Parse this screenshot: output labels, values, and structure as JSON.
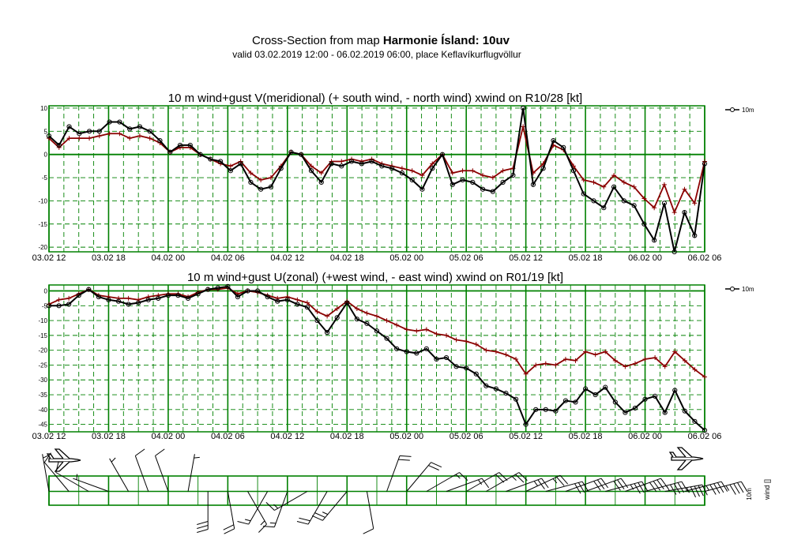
{
  "header": {
    "title_prefix": "Cross-Section from map ",
    "title_bold": "Harmonie Ísland: 10uv",
    "subtitle": "valid 03.02.2019 12:00 - 06.02.2019 06:00, place Keflavíkurflugvöllur"
  },
  "colors": {
    "grid": "#008000",
    "wind_line": "#000000",
    "gust_line": "#8b0000"
  },
  "icons": [
    "airplane-left-icon",
    "airplane-right-icon"
  ],
  "chart_data": [
    {
      "type": "line",
      "title": "10 m wind+gust V(meridional) (+ south wind, - north wind) xwind on R10/28 [kt]",
      "x_tick_labels": [
        "03.02 12",
        "03.02 18",
        "04.02 00",
        "04.02 06",
        "04.02 12",
        "04.02 18",
        "05.02 00",
        "05.02 06",
        "05.02 12",
        "05.02 18",
        "06.02 00",
        "06.02 06"
      ],
      "x_range_hours": [
        0,
        66
      ],
      "y_ticks": [
        10,
        5,
        0,
        -5,
        -10,
        -15,
        -20
      ],
      "ylim": [
        -21,
        10.5
      ],
      "legend": "10m",
      "legend_position": "top-right",
      "grid": true,
      "series": [
        {
          "name": "10m",
          "role": "wind",
          "values": [
            4,
            2,
            6,
            4.5,
            5,
            5,
            7,
            7,
            5.5,
            6,
            5,
            3,
            0.5,
            2,
            2,
            0,
            -1,
            -1.5,
            -3.5,
            -2,
            -6,
            -7.5,
            -7,
            -3,
            0.5,
            0,
            -3.5,
            -6,
            -2,
            -2.5,
            -1.5,
            -2,
            -1.5,
            -2.5,
            -3,
            -4,
            -5.5,
            -7.5,
            -3,
            0,
            -6.5,
            -5.5,
            -6,
            -7.5,
            -8,
            -6,
            -4.5,
            10,
            -6.5,
            -3,
            3,
            1.5,
            -3.5,
            -8.5,
            -10,
            -11.5,
            -7,
            -10,
            -11,
            -15,
            -18.5,
            -10.5,
            -21,
            -12.5,
            -17.5,
            -2
          ]
        },
        {
          "role": "gust",
          "values": [
            3.5,
            1.5,
            3.5,
            3.5,
            3.5,
            4,
            4.5,
            4.5,
            3.5,
            4,
            3.5,
            2.5,
            0.5,
            1.5,
            1.5,
            0,
            -1,
            -2,
            -2.5,
            -1.5,
            -4,
            -5.5,
            -5,
            -2.5,
            0.5,
            0,
            -2.5,
            -4,
            -1.5,
            -1.5,
            -1,
            -1.5,
            -1,
            -2,
            -2.5,
            -3,
            -3.5,
            -4.5,
            -2,
            0,
            -4,
            -3.5,
            -3.5,
            -4.5,
            -5,
            -3.5,
            -3,
            6,
            -4,
            -2,
            2,
            1,
            -2.5,
            -5.5,
            -6,
            -7,
            -4.5,
            -6,
            -7,
            -9.5,
            -11.5,
            -6.5,
            -12.5,
            -7.5,
            -10.5,
            -1.5
          ]
        }
      ]
    },
    {
      "type": "line",
      "title": "10 m wind+gust U(zonal) (+west wind, - east wind) xwind on R01/19 [kt]",
      "x_tick_labels": [
        "03.02 12",
        "03.02 18",
        "04.02 00",
        "04.02 06",
        "04.02 12",
        "04.02 18",
        "05.02 00",
        "05.02 06",
        "05.02 12",
        "05.02 18",
        "06.02 00",
        "06.02 06"
      ],
      "x_range_hours": [
        0,
        66
      ],
      "y_ticks": [
        0,
        -5,
        -10,
        -15,
        -20,
        -25,
        -30,
        -35,
        -40,
        -45
      ],
      "ylim": [
        -47.5,
        2
      ],
      "legend": "10m",
      "legend_position": "top-right",
      "grid": true,
      "series": [
        {
          "name": "10m",
          "role": "wind",
          "values": [
            -5,
            -5,
            -4.5,
            -1.5,
            0.5,
            -2,
            -3,
            -3.5,
            -4.5,
            -4,
            -3,
            -2.5,
            -1.5,
            -1.5,
            -2.5,
            -1,
            0.5,
            1,
            1.5,
            -2,
            0,
            0,
            -2,
            -3.5,
            -3,
            -4.5,
            -5.5,
            -10,
            -14,
            -9,
            -4,
            -9.5,
            -11,
            -13.5,
            -16,
            -19.5,
            -20.5,
            -21,
            -19.5,
            -23,
            -22.5,
            -25.5,
            -26,
            -28,
            -32,
            -33,
            -34.5,
            -36.5,
            -45,
            -40,
            -40,
            -40.5,
            -37,
            -37.5,
            -33,
            -35,
            -32.5,
            -37.5,
            -41,
            -39.5,
            -36.5,
            -35.5,
            -41,
            -33.5,
            -40.5,
            -44,
            -47
          ]
        },
        {
          "role": "gust",
          "values": [
            -4.5,
            -3,
            -2.5,
            -1,
            0.5,
            -1.5,
            -2,
            -2.5,
            -2.5,
            -3,
            -2,
            -1.5,
            -1,
            -1,
            -2,
            -0.5,
            0.5,
            0.5,
            1,
            -1,
            0,
            -0.5,
            -1.5,
            -2.5,
            -2,
            -3,
            -4,
            -7,
            -8.5,
            -6,
            -3.5,
            -6,
            -7.5,
            -8.5,
            -10,
            -11.5,
            -13,
            -13.5,
            -13,
            -14.5,
            -15,
            -16.5,
            -17,
            -18,
            -20,
            -20.5,
            -21.5,
            -23,
            -28,
            -25,
            -24.5,
            -25,
            -23,
            -23.5,
            -20.5,
            -21.5,
            -20.5,
            -23.5,
            -25.5,
            -24.5,
            -23,
            -22.5,
            -25.5,
            -20.5,
            -23.5,
            -26.5,
            -29
          ]
        }
      ]
    }
  ],
  "barb_panel": {
    "legend_top": "10m",
    "legend_side": "wind []",
    "barbs": [
      {
        "dir": 350,
        "kt": 5
      },
      {
        "dir": 320,
        "kt": 10
      },
      {
        "dir": 300,
        "kt": 10
      },
      {
        "dir": 290,
        "kt": 5
      },
      {
        "dir": 330,
        "kt": 5
      },
      {
        "dir": 340,
        "kt": 10
      },
      {
        "dir": 340,
        "kt": 10
      },
      {
        "dir": 10,
        "kt": 5
      },
      {
        "dir": 180,
        "kt": 30
      },
      {
        "dir": 170,
        "kt": 20
      },
      {
        "dir": 150,
        "kt": 15
      },
      {
        "dir": 210,
        "kt": 15
      },
      {
        "dir": 200,
        "kt": 15
      },
      {
        "dir": 240,
        "kt": 15
      },
      {
        "dir": 210,
        "kt": 20
      },
      {
        "dir": 220,
        "kt": 25
      },
      {
        "dir": 170,
        "kt": 10
      },
      {
        "dir": 20,
        "kt": 20
      },
      {
        "dir": 40,
        "kt": 20
      },
      {
        "dir": 60,
        "kt": 15
      },
      {
        "dir": 70,
        "kt": 15
      },
      {
        "dir": 60,
        "kt": 20
      },
      {
        "dir": 60,
        "kt": 25
      },
      {
        "dir": 70,
        "kt": 25
      },
      {
        "dir": 65,
        "kt": 25
      },
      {
        "dir": 75,
        "kt": 30
      },
      {
        "dir": 70,
        "kt": 30
      },
      {
        "dir": 70,
        "kt": 30
      },
      {
        "dir": 75,
        "kt": 35
      },
      {
        "dir": 70,
        "kt": 40
      },
      {
        "dir": 75,
        "kt": 45
      },
      {
        "dir": 80,
        "kt": 45
      },
      {
        "dir": 75,
        "kt": 45
      },
      {
        "dir": 75,
        "kt": 45
      }
    ]
  }
}
